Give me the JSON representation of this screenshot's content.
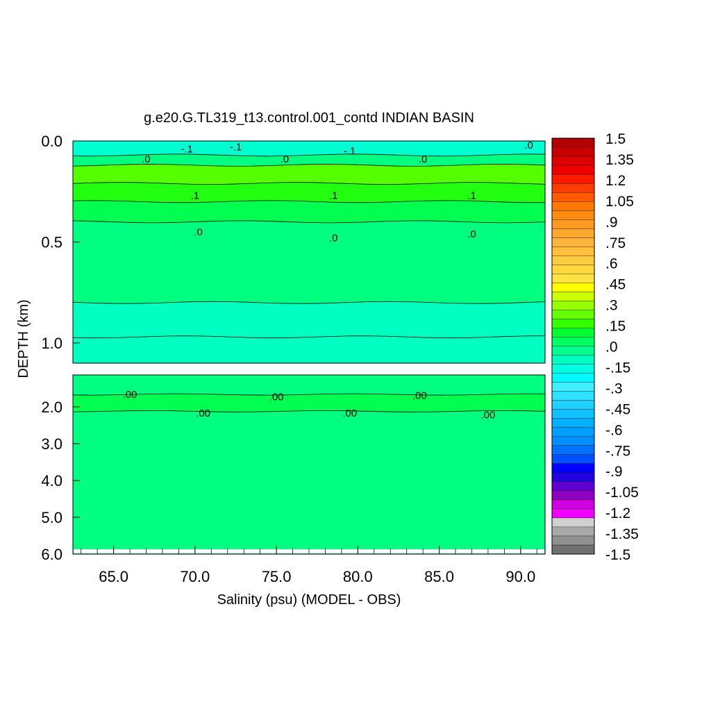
{
  "chart_data": {
    "type": "heatmap",
    "title": "g.e20.G.TL319_t13.control.001_contd INDIAN BASIN",
    "xlabel": "Salinity (psu) (MODEL - OBS)",
    "ylabel": "DEPTH (km)",
    "xlim": [
      62.5,
      91.5
    ],
    "x_ticks": [
      "65.0",
      "70.0",
      "75.0",
      "80.0",
      "85.0",
      "90.0"
    ],
    "upper_panel": {
      "ylim": [
        0.0,
        1.1
      ],
      "y_ticks": [
        "0.0",
        "0.5",
        "1.0"
      ],
      "bands": [
        {
          "from_depth": 0.0,
          "to_depth": 0.07,
          "value": -0.15,
          "color": "#00ffd0"
        },
        {
          "from_depth": 0.07,
          "to_depth": 0.12,
          "value": 0.0,
          "color": "#00ff80"
        },
        {
          "from_depth": 0.12,
          "to_depth": 0.21,
          "value": 0.15,
          "color": "#55ff00"
        },
        {
          "from_depth": 0.21,
          "to_depth": 0.3,
          "value": 0.1,
          "color": "#22ff10"
        },
        {
          "from_depth": 0.3,
          "to_depth": 0.4,
          "value": 0.05,
          "color": "#00ff50"
        },
        {
          "from_depth": 0.4,
          "to_depth": 0.8,
          "value": 0.0,
          "color": "#00ff80"
        },
        {
          "from_depth": 0.8,
          "to_depth": 0.97,
          "value": -0.05,
          "color": "#00ffc0"
        },
        {
          "from_depth": 0.97,
          "to_depth": 1.1,
          "value": -0.05,
          "color": "#00ffc0"
        }
      ],
      "contour_labels": [
        {
          "x": 70.0,
          "depth": 0.27,
          "text": ".1"
        },
        {
          "x": 78.5,
          "depth": 0.27,
          "text": ".1"
        },
        {
          "x": 87.0,
          "depth": 0.27,
          "text": ".1"
        },
        {
          "x": 70.2,
          "depth": 0.45,
          "text": ".0"
        },
        {
          "x": 78.5,
          "depth": 0.48,
          "text": ".0"
        },
        {
          "x": 87.0,
          "depth": 0.46,
          "text": ".0"
        },
        {
          "x": 67.0,
          "depth": 0.09,
          "text": ".0"
        },
        {
          "x": 75.5,
          "depth": 0.09,
          "text": ".0"
        },
        {
          "x": 84.0,
          "depth": 0.09,
          "text": ".0"
        },
        {
          "x": 69.5,
          "depth": 0.04,
          "text": "-.1"
        },
        {
          "x": 72.5,
          "depth": 0.03,
          "text": "-.1"
        },
        {
          "x": 79.5,
          "depth": 0.05,
          "text": "-.1"
        },
        {
          "x": 90.5,
          "depth": 0.02,
          "text": ".0"
        }
      ]
    },
    "lower_panel": {
      "ylim": [
        1.1,
        6.0
      ],
      "y_ticks": [
        "2.0",
        "3.0",
        "4.0",
        "5.0",
        "6.0"
      ],
      "bands": [
        {
          "from_depth": 1.1,
          "to_depth": 1.65,
          "value": 0.0,
          "color": "#00ff80"
        },
        {
          "from_depth": 1.65,
          "to_depth": 2.12,
          "value": 0.05,
          "color": "#00ff50"
        },
        {
          "from_depth": 2.12,
          "to_depth": 6.0,
          "value": 0.0,
          "color": "#00ff80"
        }
      ],
      "contour_labels": [
        {
          "x": 66.0,
          "depth": 1.65,
          "text": ".00"
        },
        {
          "x": 75.0,
          "depth": 1.72,
          "text": ".00"
        },
        {
          "x": 83.8,
          "depth": 1.68,
          "text": ".00"
        },
        {
          "x": 70.5,
          "depth": 2.17,
          "text": ".00"
        },
        {
          "x": 79.5,
          "depth": 2.17,
          "text": ".00"
        },
        {
          "x": 88.0,
          "depth": 2.22,
          "text": ".00"
        }
      ]
    },
    "colorbar": {
      "labels": [
        "1.5",
        "1.35",
        "1.2",
        "1.05",
        ".9",
        ".75",
        ".6",
        ".45",
        ".3",
        ".15",
        ".0",
        "-.15",
        "-.3",
        "-.45",
        "-.6",
        "-.75",
        "-.9",
        "-1.05",
        "-1.2",
        "-1.35",
        "-1.5"
      ],
      "colors": [
        "#b40000",
        "#c80000",
        "#dc0000",
        "#f00000",
        "#ff1a00",
        "#ff3c00",
        "#ff5a00",
        "#ff7800",
        "#ff8c10",
        "#ff9a20",
        "#ffa830",
        "#ffb43a",
        "#ffc040",
        "#ffcc40",
        "#ffd840",
        "#ffe440",
        "#ffff00",
        "#ccff00",
        "#99ff00",
        "#66ff00",
        "#33ff00",
        "#00ff30",
        "#00ff60",
        "#00ff90",
        "#00ffc0",
        "#00ffe0",
        "#00f8ff",
        "#40f0ff",
        "#30e0ff",
        "#20d0ff",
        "#10c0ff",
        "#00b0ff",
        "#00a0ff",
        "#0090ff",
        "#0070ff",
        "#0050ff",
        "#0000ff",
        "#2000e0",
        "#6000d0",
        "#9000c0",
        "#d000e0",
        "#f000ff",
        "#d0d0d0",
        "#a8a8a8",
        "#909090",
        "#707070"
      ]
    }
  }
}
